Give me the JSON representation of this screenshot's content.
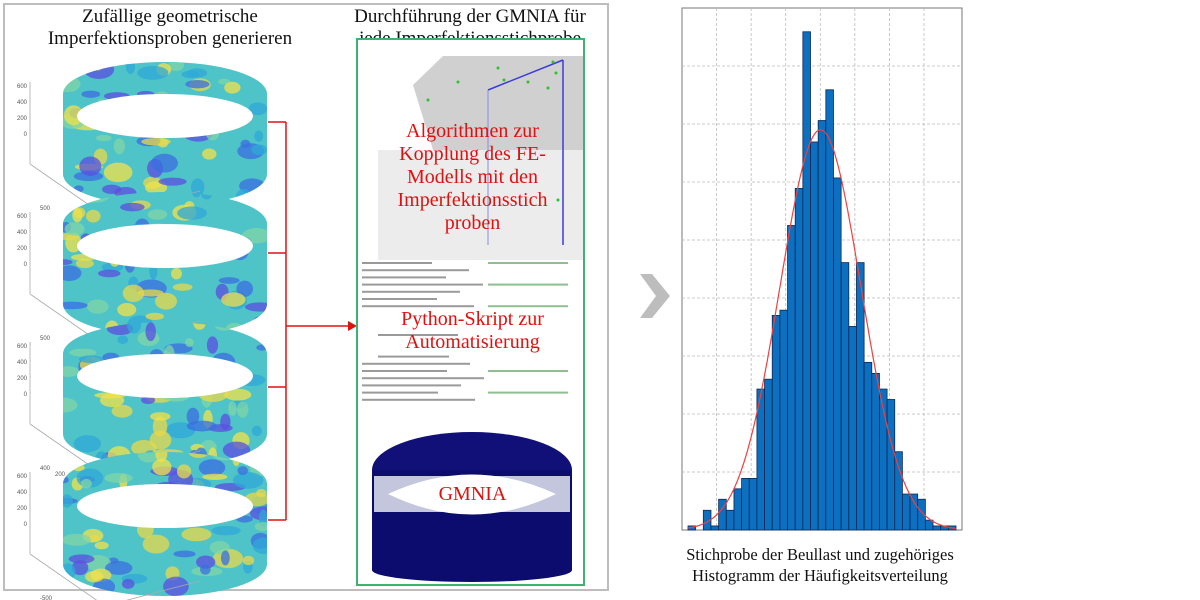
{
  "left": {
    "title_line1": "Zufällige geometrische",
    "title_line2": "Imperfektionsproben generieren",
    "cylinders": [
      {
        "z_ticks": [
          "600",
          "400",
          "200",
          "0"
        ],
        "x_ticks": [
          "500",
          "0"
        ]
      },
      {
        "z_ticks": [
          "600",
          "400",
          "200",
          "0"
        ],
        "x_ticks": [
          "500",
          "0"
        ]
      },
      {
        "z_ticks": [
          "600",
          "400",
          "200",
          "0"
        ],
        "x_ticks": [
          "400",
          "200",
          "0",
          "-200",
          "-400"
        ]
      },
      {
        "z_ticks": [
          "600",
          "400",
          "200",
          "0"
        ],
        "x_ticks": [
          "-500",
          "0"
        ]
      }
    ]
  },
  "middle": {
    "title_line1": "Durchführung der GMNIA für",
    "title_line2": "jede Imperfektionsstichprobe",
    "algo_lines": [
      "Algorithmen zur",
      "Kopplung des FE-",
      "Modells mit den",
      "Imperfektionsstich",
      "proben"
    ],
    "script_lines": [
      "Python-Skript zur",
      "Automatisierung"
    ],
    "gmnia_label": "GMNIA"
  },
  "right": {
    "caption_line1": "Stichprobe der Beullast und zugehöriges",
    "caption_line2": "Histogramm der Häufigkeitsverteilung"
  },
  "colors": {
    "connector": "#e01010",
    "frame_green": "#3cb371",
    "bar": "#0d6fc0",
    "fit_curve": "#f04040",
    "gmnia_cylinder": "#0c0c6e"
  },
  "chart_data": {
    "type": "bar",
    "title": "",
    "xlabel": "",
    "ylabel": "",
    "ylim": [
      0,
      9
    ],
    "grid": true,
    "values": [
      0.07,
      0,
      0.34,
      0.07,
      0.53,
      0.34,
      0.71,
      0.89,
      0.89,
      2.43,
      2.6,
      3.7,
      3.79,
      5.25,
      5.89,
      8.59,
      6.69,
      7.06,
      7.59,
      6.07,
      4.61,
      3.51,
      4.61,
      2.89,
      2.7,
      2.43,
      2.25,
      1.35,
      0.62,
      0.62,
      0.53,
      0.17,
      0.07,
      0.07,
      0.07
    ],
    "fit": {
      "type": "normal",
      "mean_bin": 17.3,
      "std_bins": 5.3,
      "peak": 6.9
    }
  }
}
